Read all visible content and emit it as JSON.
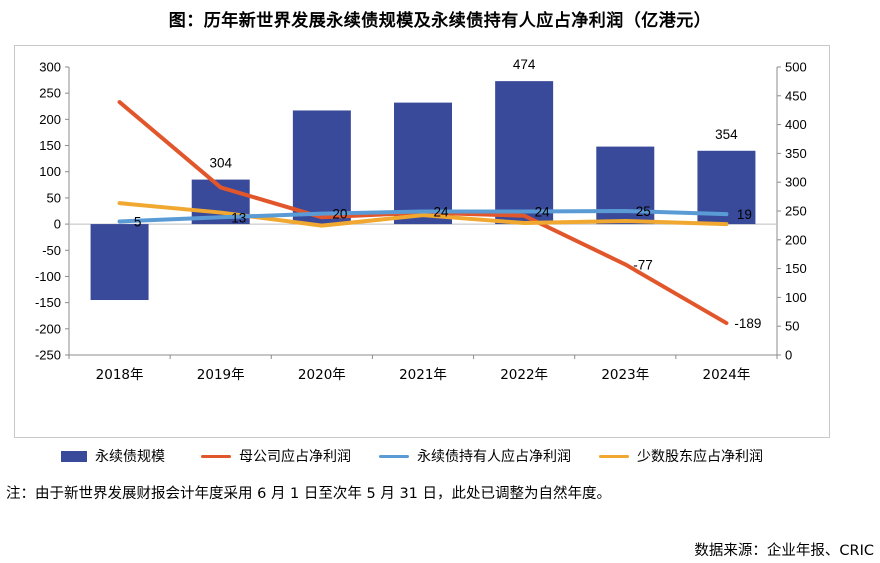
{
  "title": "图：历年新世界发展永续债规模及永续债持有人应占净利润（亿港元）",
  "note": "注：由于新世界发展财报会计年度采用 6 月 1 日至次年 5 月 31 日，此处已调整为自然年度。",
  "source": "数据来源：企业年报、CRIC",
  "colors": {
    "bar": "#3a4a9b",
    "parent_profit": "#e2562b",
    "perp_holder_profit": "#5b9bd5",
    "minority_profit": "#f0a830"
  },
  "chart_data": {
    "type": "bar",
    "categories": [
      "2018年",
      "2019年",
      "2020年",
      "2021年",
      "2022年",
      "2023年",
      "2024年"
    ],
    "y_left": {
      "range": [
        -250,
        300
      ],
      "ticks": [
        "-250",
        "-200",
        "-150",
        "-100",
        "-50",
        "0",
        "50",
        "100",
        "150",
        "200",
        "250",
        "300"
      ]
    },
    "y_right": {
      "range": [
        0,
        500
      ],
      "ticks": [
        "0",
        "50",
        "100",
        "150",
        "200",
        "250",
        "300",
        "350",
        "400",
        "450",
        "500"
      ]
    },
    "series": [
      {
        "name": "永续债规模",
        "type": "bar",
        "axis": "left",
        "values": [
          -145,
          85,
          217,
          232,
          273,
          148,
          140
        ],
        "labels": [
          "",
          "304",
          "",
          "",
          "474",
          "",
          "354"
        ]
      },
      {
        "name": "母公司应占净利润",
        "type": "line",
        "axis": "left",
        "values": [
          233,
          70,
          13,
          22,
          16,
          -77,
          -189
        ],
        "labels": [
          "",
          "",
          "",
          "",
          "",
          "-77",
          "-189"
        ]
      },
      {
        "name": "永续债持有人应占净利润",
        "type": "line",
        "axis": "left",
        "values": [
          5,
          13,
          20,
          24,
          24,
          25,
          19
        ],
        "labels": [
          "5",
          "13",
          "20",
          "24",
          "24",
          "25",
          "19"
        ]
      },
      {
        "name": "少数股东应占净利润",
        "type": "line",
        "axis": "left",
        "values": [
          40,
          22,
          -3,
          17,
          2,
          6,
          0
        ],
        "labels": [
          "",
          "",
          "",
          "",
          "",
          "",
          ""
        ]
      }
    ],
    "grid": false,
    "legend_position": "bottom"
  }
}
